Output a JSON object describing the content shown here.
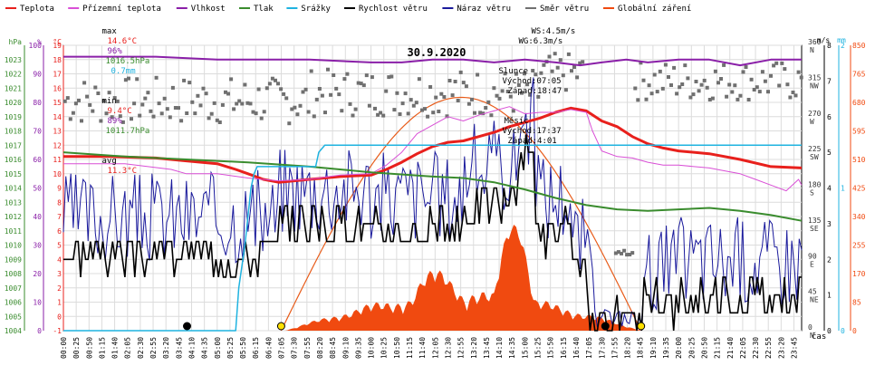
{
  "legend": [
    {
      "label": "Teplota",
      "color": "#e8201c"
    },
    {
      "label": "Přízemní teplota",
      "color": "#d94fd6"
    },
    {
      "label": "Vlhkost",
      "color": "#8a1fa8"
    },
    {
      "label": "Tlak",
      "color": "#3a8c2e"
    },
    {
      "label": "Srážky",
      "color": "#1fb3e0"
    },
    {
      "label": "Rychlost větru",
      "color": "#000000"
    },
    {
      "label": "Náraz větru",
      "color": "#1a1a9c"
    },
    {
      "label": "Směr větru",
      "color": "#707070"
    },
    {
      "label": "Globální záření",
      "color": "#f04a10"
    }
  ],
  "stats": {
    "max_label": "max",
    "max_temp": "14.6°C",
    "max_hum": "96%",
    "max_press": "1016.5hPa",
    "max_rain": "0.7mm",
    "min_label": "min",
    "min_temp": "9.4°C",
    "min_hum": "89%",
    "min_press": "1011.7hPa",
    "avg_label": "avg",
    "avg_temp": "11.3°C"
  },
  "wind_info": {
    "ws": "WS:4.5m/s",
    "wg": "WG:6.3m/s"
  },
  "sun_info": {
    "label": "Slunce",
    "rise": "Východ:07:05",
    "set": "Západ:18:47"
  },
  "moon_info": {
    "label": "Měsíc",
    "rise": "Východ:17:37",
    "set": "Západ:4:01"
  },
  "time_axis_label": "čas",
  "chart_data": {
    "type": "line",
    "title": "30.9.2020",
    "x_ticks": [
      "00:00",
      "00:25",
      "00:50",
      "01:15",
      "01:40",
      "02:05",
      "02:30",
      "02:55",
      "03:20",
      "03:45",
      "04:10",
      "04:35",
      "05:00",
      "05:25",
      "05:50",
      "06:15",
      "06:40",
      "07:05",
      "07:30",
      "07:55",
      "08:20",
      "08:45",
      "09:10",
      "09:35",
      "10:00",
      "10:25",
      "10:50",
      "11:15",
      "11:40",
      "12:05",
      "12:30",
      "12:55",
      "13:20",
      "13:45",
      "14:10",
      "14:35",
      "15:00",
      "15:25",
      "15:50",
      "16:15",
      "16:40",
      "17:05",
      "17:30",
      "17:55",
      "18:20",
      "18:45",
      "19:10",
      "19:35",
      "20:00",
      "20:25",
      "20:50",
      "21:15",
      "21:40",
      "22:05",
      "22:30",
      "22:55",
      "23:20",
      "23:45"
    ],
    "axes": {
      "pressure": {
        "label": "hPa",
        "color": "#3a8c2e",
        "min": 1004,
        "max": 1024,
        "ticks": [
          "1004",
          "1005",
          "1006",
          "1007",
          "1008",
          "1009",
          "1010",
          "1011",
          "1012",
          "1013",
          "1014",
          "1015",
          "1016",
          "1017",
          "1018",
          "1019",
          "1020",
          "1021",
          "1022",
          "1023"
        ]
      },
      "humidity": {
        "label": "%",
        "color": "#8a1fa8",
        "min": 0,
        "max": 100,
        "ticks": [
          "0",
          "10",
          "20",
          "30",
          "40",
          "50",
          "60",
          "70",
          "80",
          "90",
          "100"
        ]
      },
      "temperature": {
        "label": "°C",
        "color": "#e8201c",
        "min": -1,
        "max": 19,
        "ticks": [
          "-1",
          "0",
          "1",
          "2",
          "3",
          "4",
          "5",
          "6",
          "7",
          "8",
          "9",
          "10",
          "11",
          "12",
          "13",
          "14",
          "15",
          "16",
          "17",
          "18",
          "19"
        ]
      },
      "direction": {
        "label": "",
        "min": 0,
        "max": 360,
        "ticks": [
          "0",
          "45",
          "90",
          "135",
          "180",
          "225",
          "270",
          "315",
          "360"
        ],
        "cardinals": [
          "N",
          "NE",
          "E",
          "SE",
          "S",
          "SW",
          "W",
          "NW",
          "N"
        ]
      },
      "wind": {
        "label": "m/s",
        "min": 0,
        "max": 8,
        "ticks": [
          "0",
          "1",
          "2",
          "3",
          "4",
          "5",
          "6",
          "7",
          "8"
        ]
      },
      "rain": {
        "label": "mm",
        "color": "#1fb3e0",
        "min": 0,
        "max": 2,
        "ticks": [
          "0",
          "1",
          "2"
        ]
      },
      "radiation": {
        "color": "#f04a10",
        "min": 0,
        "max": 850,
        "ticks": [
          "0",
          "85",
          "170",
          "255",
          "340",
          "425",
          "510",
          "595",
          "680",
          "765",
          "850"
        ]
      }
    },
    "series": [
      {
        "name": "Teplota",
        "axis": "temperature",
        "color": "#e8201c",
        "x": [
          0,
          1.5,
          3,
          4,
          5,
          5.6,
          6,
          6.5,
          7,
          8,
          9,
          10,
          10.5,
          11,
          11.5,
          12,
          12.5,
          13,
          13.5,
          14,
          14.5,
          15,
          15.5,
          16,
          16.5,
          17,
          17.5,
          18,
          18.5,
          19,
          19.5,
          20,
          21,
          22,
          23,
          24
        ],
        "y": [
          11.2,
          11.2,
          11.1,
          10.9,
          10.7,
          10.3,
          10.0,
          9.6,
          9.4,
          9.6,
          9.8,
          9.9,
          10.3,
          10.8,
          11.4,
          11.9,
          12.2,
          12.3,
          12.6,
          12.9,
          13.3,
          13.6,
          13.9,
          14.3,
          14.6,
          14.4,
          13.7,
          13.3,
          12.6,
          12.1,
          11.8,
          11.6,
          11.4,
          11.0,
          10.5,
          10.4
        ]
      },
      {
        "name": "Přízemní teplota",
        "axis": "temperature",
        "color": "#d94fd6",
        "x": [
          0,
          2,
          3.5,
          4,
          5,
          6,
          7,
          8,
          9,
          10,
          10.5,
          11,
          11.5,
          12,
          12.5,
          13,
          13.5,
          14,
          14.5,
          15,
          15.5,
          16,
          16.5,
          17,
          17.2,
          17.5,
          18,
          18.5,
          19,
          19.5,
          20,
          21,
          21.5,
          22,
          22.5,
          23,
          23.5,
          23.9,
          24
        ],
        "y": [
          10.7,
          10.7,
          10.3,
          10.0,
          10.0,
          9.7,
          9.5,
          9.6,
          9.9,
          10.0,
          10.6,
          11.5,
          12.8,
          13.4,
          14.0,
          13.7,
          14.1,
          14.4,
          14.7,
          14.2,
          14.3,
          14.3,
          14.5,
          14.3,
          13.0,
          11.6,
          11.2,
          11.1,
          10.8,
          10.6,
          10.6,
          10.4,
          10.2,
          10.0,
          9.6,
          9.2,
          8.8,
          9.6,
          9.2
        ]
      },
      {
        "name": "Vlhkost",
        "axis": "humidity",
        "color": "#8a1fa8",
        "x": [
          0,
          3,
          5,
          8,
          10,
          11,
          12,
          13,
          14,
          15,
          16,
          16.8,
          17.5,
          18.3,
          19,
          20,
          21,
          22,
          23,
          24
        ],
        "y": [
          96,
          96,
          95,
          95,
          94,
          94,
          95,
          95,
          94,
          95,
          94,
          93,
          94,
          95,
          94,
          95,
          95,
          93,
          95,
          95
        ]
      },
      {
        "name": "Tlak",
        "axis": "pressure",
        "color": "#3a8c2e",
        "x": [
          0,
          2,
          4,
          6,
          8,
          10,
          12,
          13,
          14,
          15,
          16,
          17,
          18,
          19,
          20,
          21,
          22,
          23,
          24
        ],
        "y": [
          1016.5,
          1016.2,
          1016.0,
          1015.8,
          1015.5,
          1015.1,
          1014.8,
          1014.7,
          1014.4,
          1013.9,
          1013.3,
          1012.8,
          1012.5,
          1012.4,
          1012.5,
          1012.6,
          1012.4,
          1012.1,
          1011.7
        ]
      },
      {
        "name": "Srážky",
        "axis": "rain",
        "color": "#1fb3e0",
        "x": [
          0,
          5.6,
          5.7,
          5.9,
          6.1,
          6.2,
          6.3,
          8.2,
          8.3,
          8.5,
          24
        ],
        "y": [
          0,
          0,
          0.3,
          0.6,
          1.0,
          1.1,
          1.15,
          1.15,
          1.25,
          1.3,
          1.3
        ]
      }
    ]
  }
}
